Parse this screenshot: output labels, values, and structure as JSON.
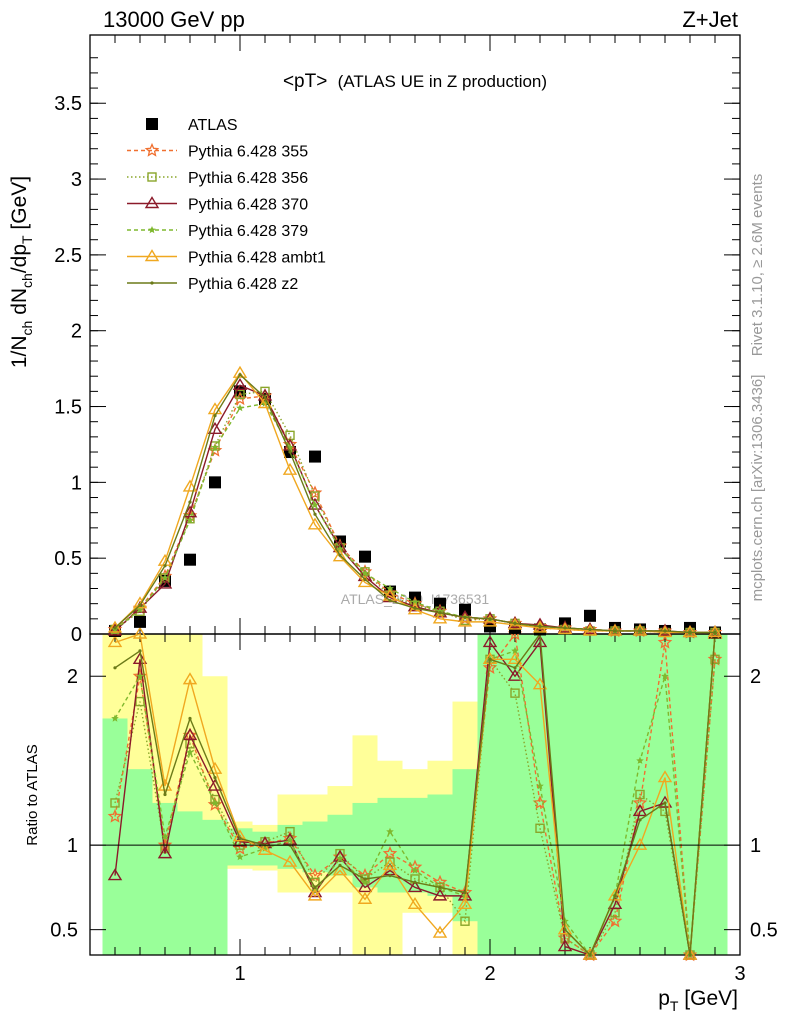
{
  "header": {
    "left": "13000 GeV pp",
    "right": "Z+Jet"
  },
  "plot_title": {
    "main": "<pT>",
    "sub": "(ATLAS UE in Z production)"
  },
  "side_labels": {
    "rivet": "Rivet 3.1.10, ≥ 2.6M events",
    "mcplots": "mcplots.cern.ch [arXiv:1306.3436]"
  },
  "watermark": "ATLAS_2019_I1736531",
  "chart_data": [
    {
      "type": "line",
      "panel": "main",
      "ylabel": "1/Nch dNch/dpT [GeV]",
      "xlim": [
        0.4,
        3.0
      ],
      "ylim": [
        0,
        3.95
      ],
      "yticks": [
        0,
        0.5,
        1,
        1.5,
        2,
        2.5,
        3,
        3.5
      ],
      "yticklabels": [
        "0",
        "0.5",
        "1",
        "1.5",
        "2",
        "2.5",
        "3",
        "3.5"
      ],
      "legend_position": "top-left",
      "x": [
        0.5,
        0.6,
        0.7,
        0.8,
        0.9,
        1.0,
        1.1,
        1.2,
        1.3,
        1.4,
        1.5,
        1.6,
        1.7,
        1.8,
        1.9,
        2.0,
        2.1,
        2.2,
        2.3,
        2.4,
        2.5,
        2.6,
        2.7,
        2.8,
        2.9
      ],
      "series": [
        {
          "name": "ATLAS",
          "color": "#000000",
          "marker": "square-filled",
          "dash": "none",
          "values": [
            0.02,
            0.08,
            0.35,
            0.49,
            1.0,
            1.6,
            1.55,
            1.2,
            1.17,
            0.61,
            0.51,
            0.28,
            0.24,
            0.2,
            0.16,
            0.05,
            0.04,
            0.03,
            0.07,
            0.12,
            0.04,
            0.03,
            0.02,
            0.04,
            0.01
          ]
        },
        {
          "name": "Pythia 6.428 355",
          "color": "#f07030",
          "marker": "star-open",
          "dash": "4,3",
          "values": [
            0.03,
            0.17,
            0.38,
            0.78,
            1.21,
            1.55,
            1.57,
            1.25,
            0.93,
            0.58,
            0.41,
            0.27,
            0.2,
            0.15,
            0.1,
            0.1,
            0.07,
            0.05,
            0.04,
            0.03,
            0.02,
            0.02,
            0.02,
            0.01,
            0.01
          ]
        },
        {
          "name": "Pythia 6.428 356",
          "color": "#8aa62a",
          "marker": "square-open",
          "dash": "1.5,2.5",
          "values": [
            0.03,
            0.15,
            0.37,
            0.76,
            1.24,
            1.58,
            1.6,
            1.31,
            0.91,
            0.57,
            0.41,
            0.25,
            0.19,
            0.15,
            0.09,
            0.1,
            0.07,
            0.04,
            0.03,
            0.02,
            0.02,
            0.02,
            0.01,
            0.01,
            0.01
          ]
        },
        {
          "name": "Pythia 6.428 370",
          "color": "#8b1a2a",
          "marker": "triangle-open",
          "dash": "none",
          "values": [
            0.02,
            0.17,
            0.33,
            0.8,
            1.35,
            1.64,
            1.57,
            1.24,
            0.85,
            0.57,
            0.38,
            0.24,
            0.18,
            0.14,
            0.11,
            0.1,
            0.07,
            0.06,
            0.04,
            0.03,
            0.02,
            0.02,
            0.02,
            0.01,
            0.01
          ]
        },
        {
          "name": "Pythia 6.428 379",
          "color": "#7fb82e",
          "marker": "star-filled",
          "dash": "4,3",
          "values": [
            0.03,
            0.16,
            0.37,
            0.75,
            1.23,
            1.49,
            1.52,
            1.23,
            0.85,
            0.56,
            0.4,
            0.3,
            0.21,
            0.15,
            0.11,
            0.1,
            0.07,
            0.05,
            0.04,
            0.03,
            0.02,
            0.02,
            0.02,
            0.01,
            0.01
          ]
        },
        {
          "name": "Pythia 6.428 ambt1",
          "color": "#f0a820",
          "marker": "triangle-open",
          "dash": "none",
          "values": [
            0.04,
            0.2,
            0.48,
            0.97,
            1.48,
            1.72,
            1.52,
            1.08,
            0.72,
            0.51,
            0.34,
            0.25,
            0.16,
            0.1,
            0.08,
            0.08,
            0.06,
            0.04,
            0.03,
            0.02,
            0.02,
            0.02,
            0.01,
            0.01,
            0.01
          ]
        },
        {
          "name": "Pythia 6.428 z2",
          "color": "#6b7a18",
          "marker": "dot",
          "dash": "none",
          "values": [
            0.04,
            0.19,
            0.45,
            0.87,
            1.44,
            1.71,
            1.56,
            1.2,
            0.79,
            0.52,
            0.36,
            0.22,
            0.17,
            0.14,
            0.11,
            0.1,
            0.07,
            0.05,
            0.04,
            0.03,
            0.02,
            0.02,
            0.02,
            0.01,
            0.01
          ]
        }
      ]
    },
    {
      "type": "line",
      "panel": "ratio",
      "xlabel": "pT [GeV]",
      "ylabel": "Ratio to ATLAS",
      "xlim": [
        0.4,
        3.0
      ],
      "ylim": [
        0.35,
        2.25
      ],
      "xticks": [
        1,
        2,
        3
      ],
      "xticklabels": [
        "1",
        "2",
        "3"
      ],
      "yticks": [
        0.5,
        1,
        2
      ],
      "yticklabels": [
        "0.5",
        "1",
        "2"
      ],
      "reference_line": 1,
      "bands": {
        "bin_edges": [
          0.45,
          0.55,
          0.65,
          0.75,
          0.85,
          0.95,
          1.05,
          1.15,
          1.25,
          1.35,
          1.45,
          1.55,
          1.65,
          1.75,
          1.85,
          1.95,
          2.05,
          2.15,
          2.25,
          2.35,
          2.45,
          2.55,
          2.65,
          2.75,
          2.85,
          2.95
        ],
        "inner": [
          [
            0.35,
            1.75
          ],
          [
            0.35,
            1.45
          ],
          [
            0.35,
            1.25
          ],
          [
            0.35,
            1.2
          ],
          [
            0.35,
            1.15
          ],
          [
            0.88,
            1.1
          ],
          [
            0.88,
            1.08
          ],
          [
            0.86,
            1.12
          ],
          [
            0.84,
            1.14
          ],
          [
            0.82,
            1.18
          ],
          [
            0.75,
            1.25
          ],
          [
            0.72,
            1.28
          ],
          [
            0.72,
            1.28
          ],
          [
            0.7,
            1.3
          ],
          [
            0.55,
            1.45
          ],
          [
            0.35,
            2.25
          ],
          [
            0.35,
            2.25
          ],
          [
            0.35,
            2.25
          ],
          [
            0.35,
            2.25
          ],
          [
            0.35,
            2.25
          ],
          [
            0.35,
            2.25
          ],
          [
            0.35,
            2.25
          ],
          [
            0.35,
            2.25
          ],
          [
            0.35,
            2.25
          ],
          [
            0.35,
            2.25
          ]
        ],
        "outer": [
          [
            0.35,
            2.25
          ],
          [
            0.35,
            2.25
          ],
          [
            0.35,
            2.25
          ],
          [
            0.35,
            2.25
          ],
          [
            0.35,
            2.0
          ],
          [
            0.86,
            1.14
          ],
          [
            0.85,
            1.12
          ],
          [
            0.72,
            1.3
          ],
          [
            0.72,
            1.3
          ],
          [
            0.72,
            1.35
          ],
          [
            0.35,
            1.65
          ],
          [
            0.35,
            1.5
          ],
          [
            0.6,
            1.45
          ],
          [
            0.6,
            1.5
          ],
          [
            0.35,
            1.85
          ],
          [
            0.35,
            2.25
          ],
          [
            0.35,
            2.25
          ],
          [
            0.35,
            2.25
          ],
          [
            0.35,
            2.25
          ],
          [
            0.35,
            2.25
          ],
          [
            0.35,
            2.25
          ],
          [
            0.35,
            2.25
          ],
          [
            0.35,
            2.25
          ],
          [
            0.35,
            2.25
          ],
          [
            0.35,
            2.25
          ]
        ]
      },
      "x": [
        0.5,
        0.6,
        0.7,
        0.8,
        0.9,
        1.0,
        1.1,
        1.2,
        1.3,
        1.4,
        1.5,
        1.6,
        1.7,
        1.8,
        1.9,
        2.0,
        2.1,
        2.2,
        2.3,
        2.4,
        2.5,
        2.6,
        2.7,
        2.8,
        2.9
      ],
      "series": [
        {
          "name": "Pythia 6.428 355",
          "color": "#f07030",
          "marker": "star-open",
          "dash": "4,3",
          "values": [
            1.17,
            2.0,
            1.0,
            1.65,
            1.24,
            0.98,
            1.01,
            1.04,
            0.82,
            0.93,
            0.82,
            0.95,
            0.87,
            0.78,
            0.72,
            2.05,
            2.25,
            1.25,
            0.45,
            0.3,
            0.55,
            1.25,
            2.2,
            0.3,
            2.1
          ]
        },
        {
          "name": "Pythia 6.428 356",
          "color": "#8aa62a",
          "marker": "square-open",
          "dash": "1.5,2.5",
          "values": [
            1.25,
            1.85,
            0.98,
            1.6,
            1.27,
            1.0,
            1.02,
            1.08,
            0.78,
            0.95,
            0.8,
            0.9,
            0.8,
            0.75,
            0.55,
            2.1,
            1.9,
            1.1,
            0.45,
            0.3,
            0.6,
            1.3,
            1.2,
            0.35,
            2.1
          ]
        },
        {
          "name": "Pythia 6.428 370",
          "color": "#8b1a2a",
          "marker": "triangle-open",
          "dash": "none",
          "values": [
            0.82,
            2.1,
            0.95,
            1.65,
            1.35,
            1.02,
            1.01,
            1.03,
            0.72,
            0.93,
            0.75,
            0.85,
            0.75,
            0.7,
            0.7,
            2.2,
            2.0,
            2.2,
            0.4,
            0.25,
            0.65,
            1.2,
            1.25,
            0.3,
            2.25
          ]
        },
        {
          "name": "Pythia 6.428 379",
          "color": "#7fb82e",
          "marker": "star-filled",
          "dash": "4,3",
          "values": [
            1.75,
            2.0,
            1.05,
            1.55,
            1.25,
            0.93,
            0.98,
            1.03,
            0.73,
            0.92,
            0.78,
            1.08,
            0.85,
            0.75,
            0.7,
            2.1,
            2.15,
            1.35,
            0.55,
            0.3,
            0.7,
            1.5,
            2.0,
            0.35,
            2.25
          ]
        },
        {
          "name": "Pythia 6.428 ambt1",
          "color": "#f0a820",
          "marker": "triangle-open",
          "dash": "none",
          "values": [
            2.2,
            2.25,
            1.35,
            1.98,
            1.45,
            1.05,
            0.97,
            0.9,
            0.7,
            0.85,
            0.68,
            0.88,
            0.65,
            0.48,
            0.65,
            2.1,
            2.1,
            1.95,
            0.5,
            0.25,
            0.7,
            1.0,
            1.4,
            0.3,
            2.25
          ]
        },
        {
          "name": "Pythia 6.428 z2",
          "color": "#6b7a18",
          "marker": "dot",
          "dash": "none",
          "values": [
            2.05,
            2.15,
            1.3,
            1.75,
            1.4,
            1.04,
            1.0,
            1.0,
            0.75,
            0.88,
            0.8,
            0.82,
            0.78,
            0.75,
            0.72,
            2.1,
            2.05,
            2.25,
            0.5,
            0.3,
            0.7,
            1.15,
            1.25,
            0.35,
            2.25
          ]
        }
      ]
    }
  ]
}
